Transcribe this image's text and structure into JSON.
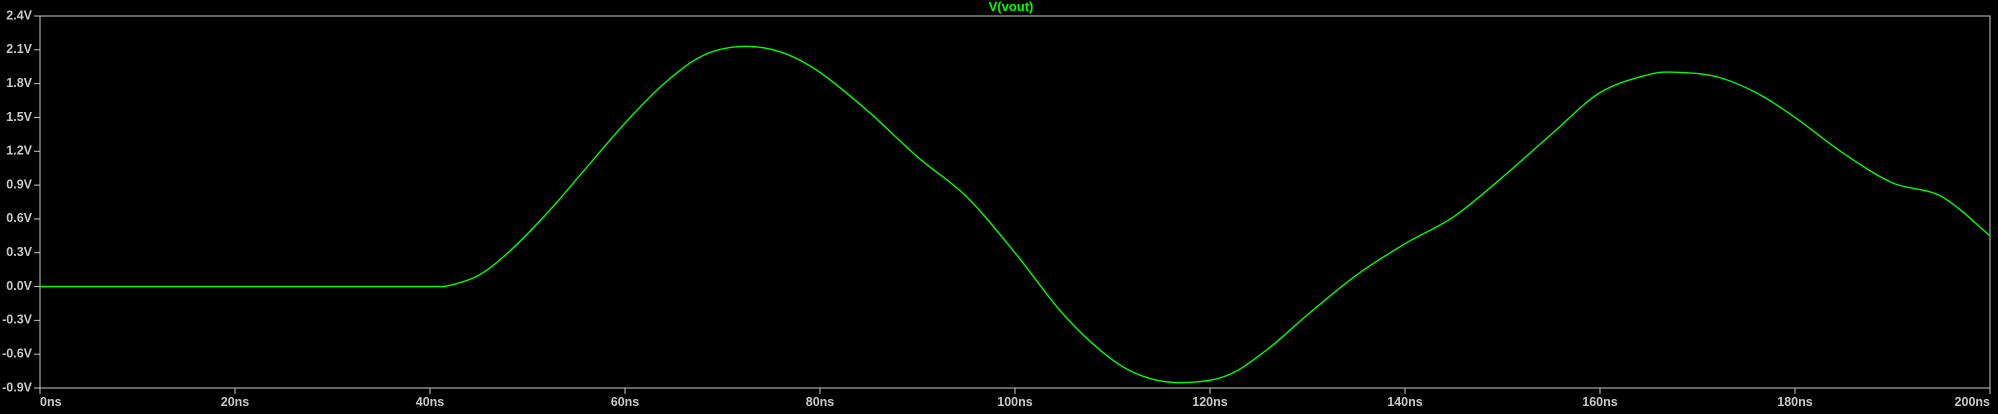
{
  "window": {
    "background": "#000000",
    "title": "V(vout)"
  },
  "chart_data": {
    "type": "line",
    "title": "V(vout)",
    "xlabel": "",
    "ylabel": "",
    "xlim": [
      0,
      200
    ],
    "ylim": [
      -0.9,
      2.4
    ],
    "grid": false,
    "x_ticks": [
      0,
      20,
      40,
      60,
      80,
      100,
      120,
      140,
      160,
      180,
      200
    ],
    "x_tick_labels": [
      "0ns",
      "20ns",
      "40ns",
      "60ns",
      "80ns",
      "100ns",
      "120ns",
      "140ns",
      "160ns",
      "180ns",
      "200ns"
    ],
    "y_ticks": [
      2.4,
      2.1,
      1.8,
      1.5,
      1.2,
      0.9,
      0.6,
      0.3,
      0.0,
      -0.3,
      -0.6,
      -0.9
    ],
    "y_tick_labels": [
      "2.4V",
      "2.1V",
      "1.8V",
      "1.5V",
      "1.2V",
      "0.9V",
      "0.6V",
      "0.3V",
      "0.0V",
      "-0.3V",
      "-0.6V",
      "-0.9V"
    ],
    "colors": {
      "trace": "#00ff00",
      "axes": "#c8c8c8",
      "ticks": "#c8c8c8",
      "title": "#00ff00"
    },
    "series": [
      {
        "name": "V(vout)",
        "x": [
          0,
          10,
          20,
          30,
          40,
          42,
          45,
          48,
          52,
          56,
          60,
          64,
          68,
          72,
          76,
          80,
          85,
          90,
          95,
          100,
          105,
          110,
          114,
          118,
          122,
          126,
          130,
          135,
          140,
          145,
          150,
          155,
          160,
          165,
          168,
          172,
          176,
          180,
          185,
          190,
          195,
          200
        ],
        "y": [
          0,
          0,
          0,
          0,
          0,
          0.01,
          0.1,
          0.3,
          0.65,
          1.05,
          1.45,
          1.8,
          2.05,
          2.13,
          2.08,
          1.9,
          1.55,
          1.15,
          0.8,
          0.3,
          -0.25,
          -0.65,
          -0.82,
          -0.85,
          -0.78,
          -0.55,
          -0.25,
          0.1,
          0.38,
          0.62,
          0.97,
          1.35,
          1.72,
          1.88,
          1.9,
          1.86,
          1.72,
          1.5,
          1.18,
          0.92,
          0.8,
          0.45
        ]
      }
    ]
  }
}
